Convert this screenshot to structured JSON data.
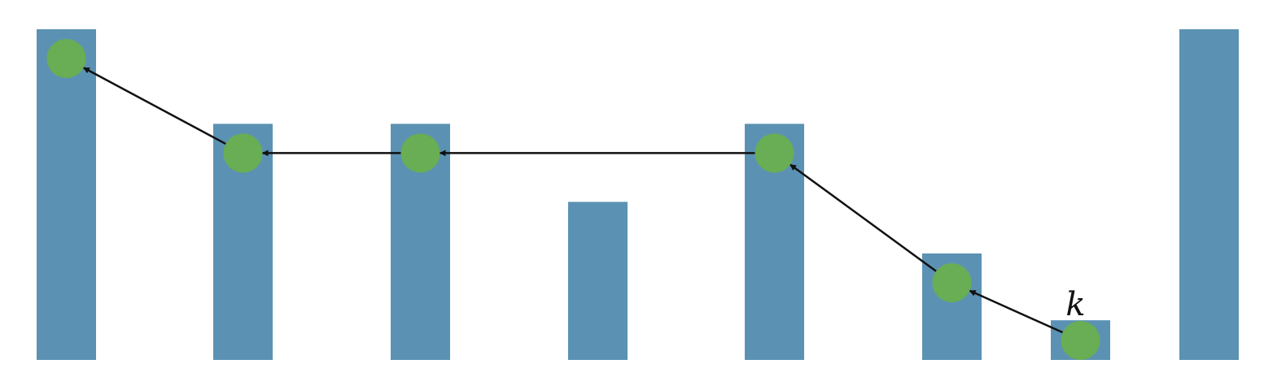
{
  "diagram": {
    "bars": [
      {
        "id": "b1",
        "height": 1.0
      },
      {
        "id": "b2",
        "height": 0.714
      },
      {
        "id": "b3",
        "height": 0.714
      },
      {
        "id": "b4",
        "height": 0.478
      },
      {
        "id": "b5",
        "height": 0.714
      },
      {
        "id": "b6",
        "height": 0.322
      },
      {
        "id": "b7",
        "height": 0.12
      },
      {
        "id": "b8",
        "height": 1.0
      }
    ],
    "marked_bars": [
      "b1",
      "b2",
      "b3",
      "b5",
      "b6",
      "b7"
    ],
    "pointers": [
      {
        "from": "b7",
        "to": "b6"
      },
      {
        "from": "b6",
        "to": "b5"
      },
      {
        "from": "b5",
        "to": "b3"
      },
      {
        "from": "b3",
        "to": "b2"
      },
      {
        "from": "b2",
        "to": "b1"
      }
    ],
    "label": {
      "text": "k",
      "bar": "b7"
    },
    "colors": {
      "bar": "#5b92b3",
      "node": "#6ab04c",
      "arrow": "#111111"
    }
  }
}
